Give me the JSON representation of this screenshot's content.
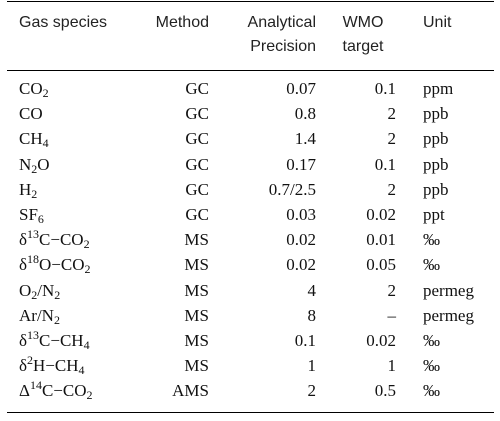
{
  "table": {
    "headers": {
      "gas_species": "Gas species",
      "method": "Method",
      "precision_line1": "Analytical",
      "precision_line2": "Precision",
      "wmo_line1": "WMO",
      "wmo_line2": "target",
      "unit": "Unit"
    },
    "rows": [
      {
        "gas": [
          "CO",
          {
            "sub": "2"
          }
        ],
        "method": "GC",
        "precision": "0.07",
        "wmo": "0.1",
        "unit": "ppm"
      },
      {
        "gas": [
          "CO"
        ],
        "method": "GC",
        "precision": "0.8",
        "wmo": "2",
        "unit": "ppb"
      },
      {
        "gas": [
          "CH",
          {
            "sub": "4"
          }
        ],
        "method": "GC",
        "precision": "1.4",
        "wmo": "2",
        "unit": "ppb"
      },
      {
        "gas": [
          "N",
          {
            "sub": "2"
          },
          "O"
        ],
        "method": "GC",
        "precision": "0.17",
        "wmo": "0.1",
        "unit": "ppb"
      },
      {
        "gas": [
          "H",
          {
            "sub": "2"
          }
        ],
        "method": "GC",
        "precision": "0.7/2.5",
        "wmo": "2",
        "unit": "ppb"
      },
      {
        "gas": [
          "SF",
          {
            "sub": "6"
          }
        ],
        "method": "GC",
        "precision": "0.03",
        "wmo": "0.02",
        "unit": "ppt"
      },
      {
        "gas": [
          "δ",
          {
            "sup": "13"
          },
          "C−CO",
          {
            "sub": "2"
          }
        ],
        "method": "MS",
        "precision": "0.02",
        "wmo": "0.01",
        "unit": "‰"
      },
      {
        "gas": [
          "δ",
          {
            "sup": "18"
          },
          "O−CO",
          {
            "sub": "2"
          }
        ],
        "method": "MS",
        "precision": "0.02",
        "wmo": "0.05",
        "unit": "‰"
      },
      {
        "gas": [
          "O",
          {
            "sub": "2"
          },
          "/N",
          {
            "sub": "2"
          }
        ],
        "method": "MS",
        "precision": "4",
        "wmo": "2",
        "unit": "permeg"
      },
      {
        "gas": [
          "Ar/N",
          {
            "sub": "2"
          }
        ],
        "method": "MS",
        "precision": "8",
        "wmo": "–",
        "unit": "permeg"
      },
      {
        "gas": [
          "δ",
          {
            "sup": "13"
          },
          "C−CH",
          {
            "sub": "4"
          }
        ],
        "method": "MS",
        "precision": "0.1",
        "wmo": "0.02",
        "unit": "‰"
      },
      {
        "gas": [
          "δ",
          {
            "sup": "2"
          },
          "H−CH",
          {
            "sub": "4"
          }
        ],
        "method": "MS",
        "precision": "1",
        "wmo": "1",
        "unit": "‰"
      },
      {
        "gas": [
          "Δ",
          {
            "sup": "14"
          },
          "C−CO",
          {
            "sub": "2"
          }
        ],
        "method": "AMS",
        "precision": "2",
        "wmo": "0.5",
        "unit": "‰"
      }
    ]
  }
}
